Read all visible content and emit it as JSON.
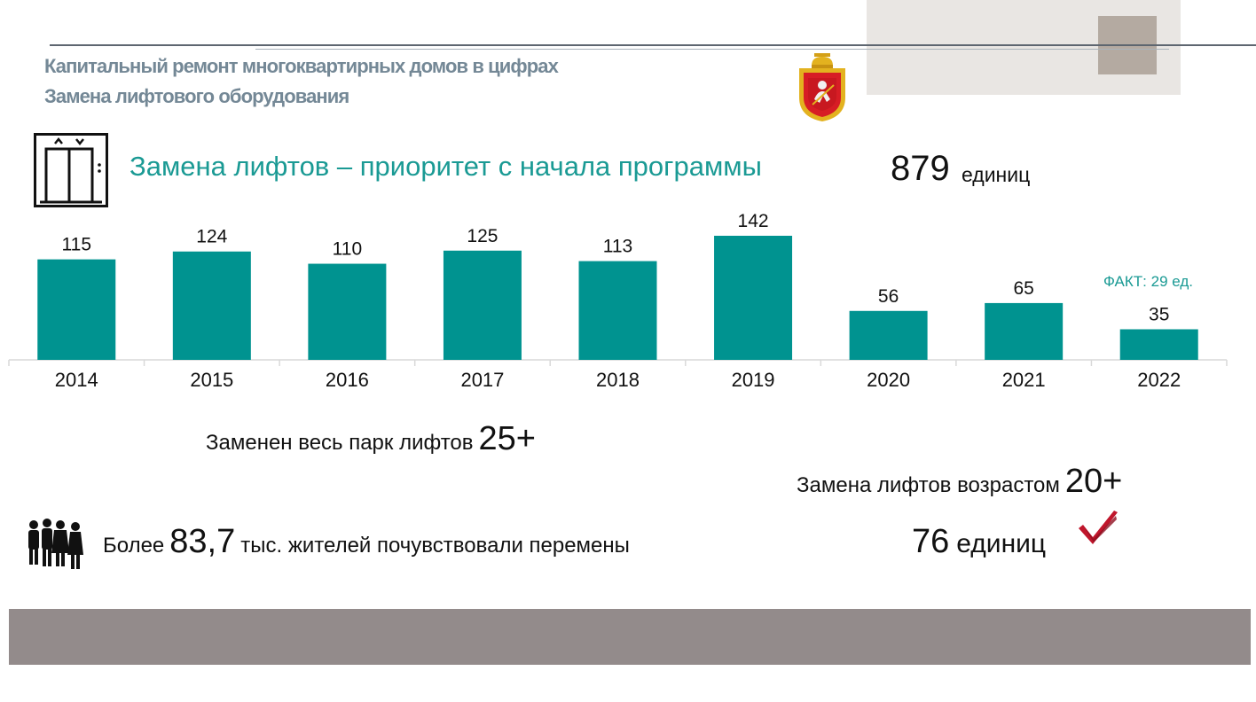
{
  "header": {
    "title_line1": "Капитальный ремонт многоквартирных домов в цифрах",
    "title_line2": "Замена лифтового оборудования"
  },
  "subtitle": "Замена лифтов – приоритет с начала программы",
  "total": {
    "value": "879",
    "unit": "единиц"
  },
  "chart_data": {
    "type": "bar",
    "categories": [
      "2014",
      "2015",
      "2016",
      "2017",
      "2018",
      "2019",
      "2020",
      "2021",
      "2022"
    ],
    "values": [
      115,
      124,
      110,
      125,
      113,
      142,
      56,
      65,
      35
    ],
    "data_labels": [
      "115",
      "124",
      "110",
      "125",
      "113",
      "142",
      "56",
      "65",
      "35"
    ],
    "title": "",
    "xlabel": "",
    "ylabel": "",
    "grid": false,
    "color": "#009390",
    "annotation": "ФАКТ: 29 ед."
  },
  "stats": {
    "park": {
      "text": "Заменен весь парк лифтов",
      "value": "25+"
    },
    "age": {
      "text": "Замена лифтов возрастом",
      "value": "20+"
    },
    "residents": {
      "prefix": "Более",
      "value": "83,7",
      "suffix": "тыс. жителей почувствовали перемены"
    },
    "units": {
      "value": "76",
      "unit": "единиц"
    }
  },
  "colors": {
    "accent": "#1a9a94",
    "bar": "#009390",
    "title_gray": "#748896",
    "check": "#c0162c",
    "bottom_bar": "#938b8b"
  },
  "icons": {
    "emblem": "coat-of-arms-icon",
    "lift": "elevator-icon",
    "people": "people-icon",
    "check": "checkmark-icon"
  }
}
